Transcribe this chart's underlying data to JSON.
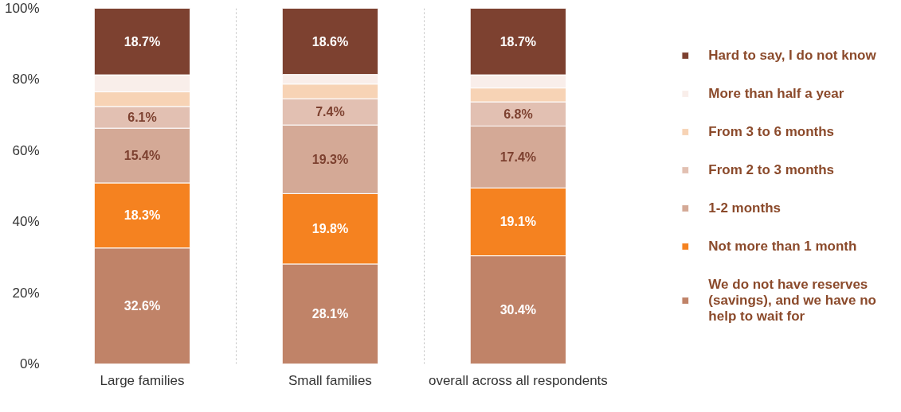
{
  "chart_data": {
    "type": "bar",
    "stacked": true,
    "categories": [
      "Large families",
      "Small families",
      "overall across all respondents"
    ],
    "series": [
      {
        "name": "We do not have reserves (savings), and we have no help to wait for",
        "color": "#c08368",
        "values": [
          32.6,
          28.1,
          30.4
        ],
        "value_labels": [
          "32.6%",
          "28.1%",
          "30.4%"
        ]
      },
      {
        "name": "Not more than 1 month",
        "color": "#f58220",
        "values": [
          18.3,
          19.8,
          19.1
        ],
        "value_labels": [
          "18.3%",
          "19.8%",
          "19.1%"
        ]
      },
      {
        "name": "1-2 months",
        "color": "#d4a996",
        "values": [
          15.4,
          19.3,
          17.4
        ],
        "value_labels": [
          "15.4%",
          "19.3%",
          "17.4%"
        ]
      },
      {
        "name": "From 2 to 3 months",
        "color": "#e2c0b2",
        "values": [
          6.1,
          7.4,
          6.8
        ],
        "value_labels": [
          "6.1%",
          "7.4%",
          "6.8%"
        ]
      },
      {
        "name": "From 3 to 6 months",
        "color": "#f7d3b5",
        "values": [
          4.1,
          4.1,
          3.9
        ],
        "value_labels": [
          null,
          null,
          null
        ]
      },
      {
        "name": "More than half a year",
        "color": "#f9eeea",
        "values": [
          4.8,
          2.7,
          3.7
        ],
        "value_labels": [
          null,
          null,
          null
        ]
      },
      {
        "name": "Hard to say, I do not know",
        "color": "#7d4130",
        "values": [
          18.7,
          18.6,
          18.7
        ],
        "value_labels": [
          "18.7%",
          "18.6%",
          "18.7%"
        ]
      }
    ],
    "ylim": [
      0,
      100
    ],
    "yticks": [
      {
        "value": 0,
        "label": "0%"
      },
      {
        "value": 20,
        "label": "20%"
      },
      {
        "value": 40,
        "label": "40%"
      },
      {
        "value": 60,
        "label": "60%"
      },
      {
        "value": 80,
        "label": "80%"
      },
      {
        "value": 100,
        "label": "100%"
      }
    ],
    "grid": "x",
    "legend": "right"
  }
}
